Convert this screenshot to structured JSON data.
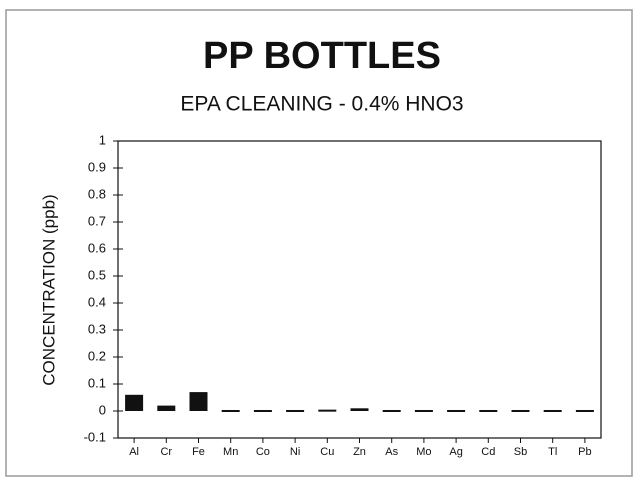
{
  "chart_data": {
    "type": "bar",
    "title": "PP BOTTLES",
    "subtitle": "EPA CLEANING  -  0.4% HNO3",
    "y_label": "CONCENTRATION (ppb)",
    "categories": [
      "Al",
      "Cr",
      "Fe",
      "Mn",
      "Co",
      "Ni",
      "Cu",
      "Zn",
      "As",
      "Mo",
      "Ag",
      "Cd",
      "Sb",
      "Tl",
      "Pb"
    ],
    "values": [
      0.06,
      0.02,
      0.07,
      0,
      0,
      -0.005,
      0.005,
      0.01,
      0,
      0,
      0,
      0,
      0,
      0,
      0
    ],
    "color": "#111111",
    "ylim": [
      -0.1,
      1
    ],
    "yticks": [
      -0.1,
      0,
      0.1,
      0.2,
      0.3,
      0.4,
      0.5,
      0.6,
      0.7,
      0.8,
      0.9,
      1
    ],
    "grid": false
  }
}
